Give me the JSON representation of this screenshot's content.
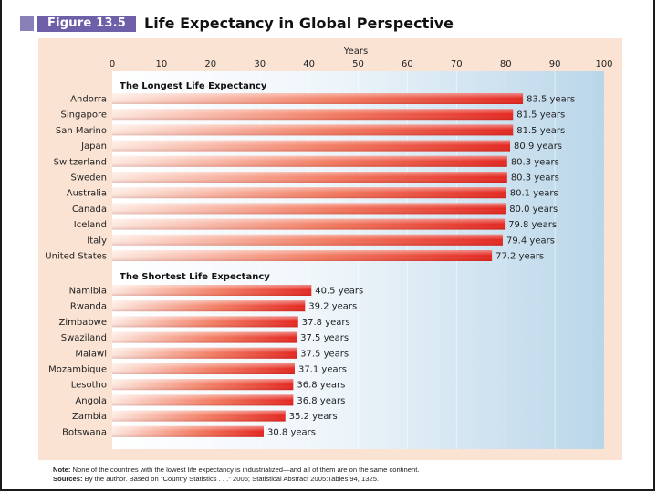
{
  "figure": {
    "label": "Figure 13.5",
    "title": "Life Expectancy in Global Perspective"
  },
  "chart_data": {
    "type": "bar",
    "orientation": "horizontal",
    "title": "Life Expectancy in Global Perspective",
    "xlabel": "Years",
    "xlim": [
      0,
      100
    ],
    "xticks": [
      0,
      10,
      20,
      30,
      40,
      50,
      60,
      70,
      80,
      90,
      100
    ],
    "colors": {
      "bar_dark": "#e8322a",
      "bar_light": "#fde5dc",
      "plot_light": "#f4f9fc",
      "plot_blue": "#bcd8ea",
      "panel": "#fbe3d4"
    },
    "sections": [
      {
        "name": "The Longest Life Expectancy",
        "categories": [
          "Andorra",
          "Singapore",
          "San Marino",
          "Japan",
          "Switzerland",
          "Sweden",
          "Australia",
          "Canada",
          "Iceland",
          "Italy",
          "United States"
        ],
        "values": [
          83.5,
          81.5,
          81.5,
          80.9,
          80.3,
          80.3,
          80.1,
          80.0,
          79.8,
          79.4,
          77.2
        ],
        "labels": [
          "83.5 years",
          "81.5 years",
          "81.5 years",
          "80.9 years",
          "80.3 years",
          "80.3 years",
          "80.1 years",
          "80.0 years",
          "79.8 years",
          "79.4 years",
          "77.2 years"
        ]
      },
      {
        "name": "The Shortest Life Expectancy",
        "categories": [
          "Namibia",
          "Rwanda",
          "Zimbabwe",
          "Swaziland",
          "Malawi",
          "Mozambique",
          "Lesotho",
          "Angola",
          "Zambia",
          "Botswana"
        ],
        "values": [
          40.5,
          39.2,
          37.8,
          37.5,
          37.5,
          37.1,
          36.8,
          36.8,
          35.2,
          30.8
        ],
        "labels": [
          "40.5 years",
          "39.2 years",
          "37.8 years",
          "37.5 years",
          "37.5 years",
          "37.1 years",
          "36.8 years",
          "36.8 years",
          "35.2 years",
          "30.8 years"
        ]
      }
    ]
  },
  "notes": {
    "note_label": "Note:",
    "note_text": "None of the countries with the lowest life expectancy is industrialized—and all of them are on the same continent.",
    "sources_label": "Sources:",
    "sources_text": "By the author. Based on \"Country Statistics . . .\" 2005; Statistical Abstract 2005:Tables 94, 1325."
  }
}
